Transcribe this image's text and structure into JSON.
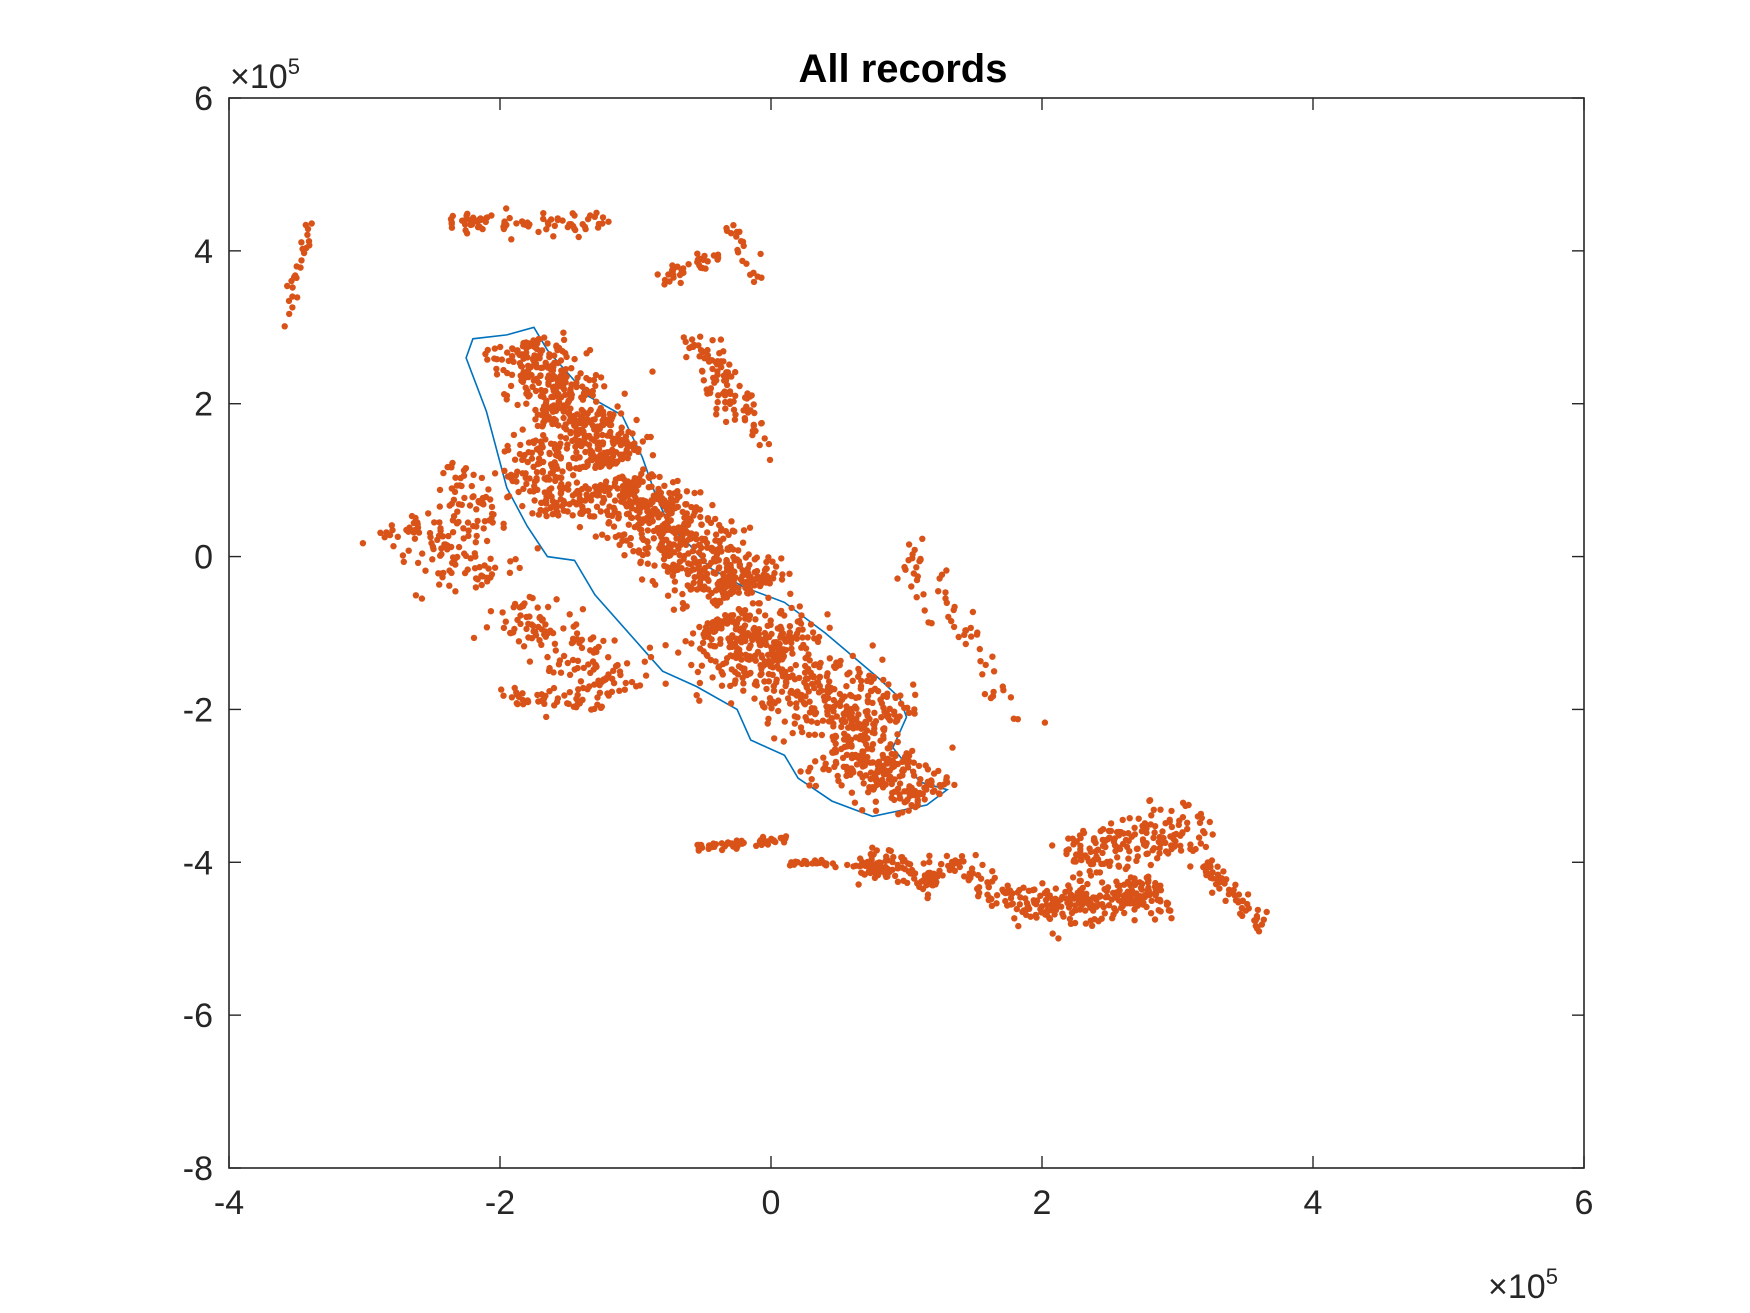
{
  "chart_data": {
    "type": "scatter",
    "title": "All records",
    "xlabel": "",
    "ylabel": "",
    "xlim": [
      -400000,
      600000
    ],
    "ylim": [
      -800000,
      600000
    ],
    "x_ticks": [
      -400000,
      -200000,
      0,
      200000,
      400000,
      600000
    ],
    "y_ticks": [
      -800000,
      -600000,
      -400000,
      -200000,
      0,
      200000,
      400000,
      600000
    ],
    "x_tick_labels": [
      "-4",
      "-2",
      "0",
      "2",
      "4",
      "6"
    ],
    "y_tick_labels": [
      "-8",
      "-6",
      "-4",
      "-2",
      "0",
      "2",
      "4",
      "6"
    ],
    "x_exponent": {
      "base": "×10",
      "power": "5"
    },
    "y_exponent": {
      "base": "×10",
      "power": "5"
    },
    "grid": false,
    "legend": "none",
    "colors": {
      "points": "#D95319",
      "outline": "#0072BD",
      "axes": "#262626",
      "background": "#FFFFFF"
    },
    "series": [
      {
        "kind": "scatter",
        "point_clusters": [
          {
            "from": [
              -185000,
              280000
            ],
            "to": [
              -115000,
              120000
            ],
            "width": 45000,
            "count": 450
          },
          {
            "from": [
              -120000,
              100000
            ],
            "to": [
              -20000,
              -50000
            ],
            "width": 60000,
            "count": 560
          },
          {
            "from": [
              -40000,
              -80000
            ],
            "to": [
              80000,
              -230000
            ],
            "width": 70000,
            "count": 560
          },
          {
            "from": [
              50000,
              -250000
            ],
            "to": [
              115000,
              -320000
            ],
            "width": 50000,
            "count": 220
          },
          {
            "from": [
              -180000,
              150000
            ],
            "to": [
              -150000,
              50000
            ],
            "width": 40000,
            "count": 160
          },
          {
            "from": [
              -270000,
              50000
            ],
            "to": [
              -200000,
              -30000
            ],
            "width": 55000,
            "count": 120
          },
          {
            "from": [
              -240000,
              120000
            ],
            "to": [
              -200000,
              40000
            ],
            "width": 25000,
            "count": 45
          },
          {
            "from": [
              -190000,
              -60000
            ],
            "to": [
              -110000,
              -180000
            ],
            "width": 45000,
            "count": 140
          },
          {
            "from": [
              -200000,
              -180000
            ],
            "to": [
              -120000,
              -200000
            ],
            "width": 20000,
            "count": 45
          },
          {
            "from": [
              -55000,
              -380000
            ],
            "to": [
              15000,
              -370000
            ],
            "width": 8000,
            "count": 60
          },
          {
            "from": [
              10000,
              -400000
            ],
            "to": [
              70000,
              -405000
            ],
            "width": 6000,
            "count": 30
          },
          {
            "from": [
              65000,
              -400000
            ],
            "to": [
              125000,
              -420000
            ],
            "width": 30000,
            "count": 110
          },
          {
            "from": [
              130000,
              -400000
            ],
            "to": [
              200000,
              -470000
            ],
            "width": 30000,
            "count": 90
          },
          {
            "from": [
              200000,
              -460000
            ],
            "to": [
              290000,
              -440000
            ],
            "width": 40000,
            "count": 220
          },
          {
            "from": [
              220000,
              -400000
            ],
            "to": [
              320000,
              -340000
            ],
            "width": 45000,
            "count": 170
          },
          {
            "from": [
              320000,
              -400000
            ],
            "to": [
              365000,
              -490000
            ],
            "width": 15000,
            "count": 60
          },
          {
            "from": [
              -85000,
              360000
            ],
            "to": [
              -40000,
              395000
            ],
            "width": 15000,
            "count": 35
          },
          {
            "from": [
              -60000,
              290000
            ],
            "to": [
              -20000,
              180000
            ],
            "width": 25000,
            "count": 80
          },
          {
            "from": [
              -25000,
              240000
            ],
            "to": [
              0,
              120000
            ],
            "width": 10000,
            "count": 22
          },
          {
            "from": [
              95000,
              20000
            ],
            "to": [
              190000,
              -230000
            ],
            "width": 25000,
            "count": 60
          },
          {
            "from": [
              -360000,
              300000
            ],
            "to": [
              -340000,
              440000
            ],
            "width": 6000,
            "count": 25
          },
          {
            "from": [
              -240000,
              440000
            ],
            "to": [
              -120000,
              430000
            ],
            "width": 20000,
            "count": 80
          },
          {
            "from": [
              -30000,
              440000
            ],
            "to": [
              -10000,
              360000
            ],
            "width": 10000,
            "count": 20
          }
        ]
      },
      {
        "kind": "outline",
        "points": [
          [
            -225000,
            260000
          ],
          [
            -220000,
            285000
          ],
          [
            -195000,
            290000
          ],
          [
            -175000,
            300000
          ],
          [
            -165000,
            270000
          ],
          [
            -150000,
            240000
          ],
          [
            -135000,
            210000
          ],
          [
            -110000,
            185000
          ],
          [
            -95000,
            130000
          ],
          [
            -85000,
            80000
          ],
          [
            -75000,
            40000
          ],
          [
            -60000,
            15000
          ],
          [
            -45000,
            -15000
          ],
          [
            -20000,
            -40000
          ],
          [
            10000,
            -60000
          ],
          [
            40000,
            -100000
          ],
          [
            60000,
            -130000
          ],
          [
            80000,
            -160000
          ],
          [
            95000,
            -185000
          ],
          [
            100000,
            -210000
          ],
          [
            90000,
            -250000
          ],
          [
            110000,
            -295000
          ],
          [
            130000,
            -305000
          ],
          [
            115000,
            -325000
          ],
          [
            75000,
            -340000
          ],
          [
            45000,
            -320000
          ],
          [
            20000,
            -290000
          ],
          [
            10000,
            -260000
          ],
          [
            -15000,
            -240000
          ],
          [
            -25000,
            -200000
          ],
          [
            -55000,
            -170000
          ],
          [
            -80000,
            -150000
          ],
          [
            -95000,
            -120000
          ],
          [
            -130000,
            -50000
          ],
          [
            -145000,
            -5000
          ],
          [
            -165000,
            0
          ],
          [
            -180000,
            40000
          ],
          [
            -195000,
            90000
          ],
          [
            -210000,
            190000
          ],
          [
            -225000,
            260000
          ]
        ]
      }
    ]
  }
}
